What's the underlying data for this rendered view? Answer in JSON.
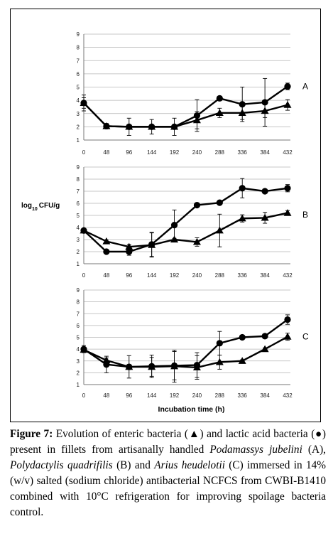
{
  "chart_data": [
    {
      "type": "line",
      "panel_label": "A",
      "x": [
        0,
        48,
        96,
        144,
        192,
        240,
        288,
        336,
        384,
        432
      ],
      "ylim": [
        1,
        9
      ],
      "yticks": [
        1,
        2,
        3,
        4,
        5,
        6,
        7,
        8,
        9
      ],
      "series": [
        {
          "marker": "circle",
          "values": [
            3.8,
            2.05,
            2.0,
            2.0,
            2.0,
            2.85,
            4.15,
            3.7,
            3.85,
            5.05
          ],
          "err": [
            0.6,
            0.1,
            0.1,
            0.1,
            0.1,
            1.2,
            0.1,
            1.3,
            1.8,
            0.25
          ]
        },
        {
          "marker": "triangle",
          "values": [
            3.8,
            2.05,
            2.0,
            2.0,
            2.0,
            2.5,
            3.05,
            3.05,
            3.2,
            3.65
          ],
          "err": [
            0.4,
            0.2,
            0.65,
            0.55,
            0.65,
            0.65,
            0.35,
            0.5,
            0.5,
            0.4
          ]
        }
      ]
    },
    {
      "type": "line",
      "panel_label": "B",
      "ylabel": "log10 CFU/g",
      "x": [
        0,
        48,
        96,
        144,
        192,
        240,
        288,
        336,
        384,
        432
      ],
      "ylim": [
        1,
        9
      ],
      "yticks": [
        1,
        2,
        3,
        4,
        5,
        6,
        7,
        8,
        9
      ],
      "series": [
        {
          "marker": "circle",
          "values": [
            3.75,
            2.0,
            2.0,
            2.6,
            4.2,
            5.85,
            6.05,
            7.25,
            7.0,
            7.25
          ],
          "err": [
            0.15,
            0.1,
            0.3,
            1.0,
            1.25,
            0.1,
            0.1,
            0.8,
            0.1,
            0.3
          ]
        },
        {
          "marker": "triangle",
          "values": [
            3.75,
            2.85,
            2.4,
            2.55,
            3.0,
            2.8,
            3.75,
            4.75,
            4.8,
            5.2
          ],
          "err": [
            0.15,
            0.1,
            0.2,
            1.0,
            0.1,
            0.35,
            1.35,
            0.3,
            0.45,
            0.2
          ]
        }
      ]
    },
    {
      "type": "line",
      "panel_label": "C",
      "xlabel": "Incubation time (h)",
      "x": [
        0,
        48,
        96,
        144,
        192,
        240,
        288,
        336,
        384,
        432
      ],
      "ylim": [
        1,
        9
      ],
      "yticks": [
        1,
        2,
        3,
        4,
        5,
        6,
        7,
        8,
        9
      ],
      "series": [
        {
          "marker": "circle",
          "values": [
            4.0,
            2.7,
            2.5,
            2.55,
            2.6,
            2.65,
            4.5,
            5.0,
            5.1,
            6.5
          ],
          "err": [
            0.3,
            0.7,
            0.95,
            0.95,
            1.2,
            1.05,
            1.0,
            0.1,
            0.1,
            0.4
          ]
        },
        {
          "marker": "triangle",
          "values": [
            3.95,
            3.05,
            2.5,
            2.5,
            2.55,
            2.45,
            2.9,
            3.0,
            4.0,
            5.05
          ],
          "err": [
            0.15,
            0.2,
            0.2,
            0.8,
            1.35,
            1.0,
            0.6,
            0.1,
            0.1,
            0.3
          ]
        }
      ]
    }
  ],
  "caption": {
    "label": "Figure 7:",
    "part1": " Evolution of enteric bacteria (▲) and lactic acid bacteria (●) present in fillets from artisanally handled ",
    "sp1": "Podamassys jubelini",
    "part2": " (A), ",
    "sp2": "Polydactylis quadrifilis",
    "part3": " (B) and ",
    "sp3": "Arius heudelotii",
    "part4": " (C) immersed in 14% (w/v) salted (sodium chloride) antibacterial NCFCS from CWBI-B1410 combined with 10°C refrigeration for improving spoilage bacteria control."
  }
}
